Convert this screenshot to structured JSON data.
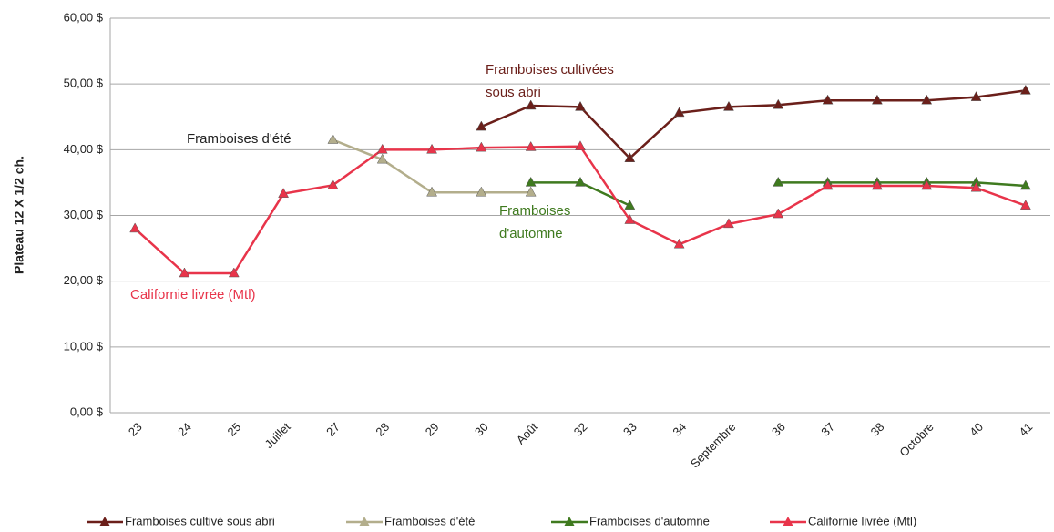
{
  "chart_data": {
    "type": "line",
    "y_label": "Plateau 12 X 1/2 ch.",
    "categories": [
      "23",
      "24",
      "25",
      "Juillet",
      "27",
      "28",
      "29",
      "30",
      "Août",
      "32",
      "33",
      "34",
      "Septembre",
      "36",
      "37",
      "38",
      "Octobre",
      "40",
      "41"
    ],
    "ylim": [
      0,
      60
    ],
    "yticks": [
      {
        "value": 0,
        "label": "0,00 $"
      },
      {
        "value": 10,
        "label": "10,00 $"
      },
      {
        "value": 20,
        "label": "20,00 $"
      },
      {
        "value": 30,
        "label": "30,00 $"
      },
      {
        "value": 40,
        "label": "40,00 $"
      },
      {
        "value": 50,
        "label": "50,00 $"
      },
      {
        "value": 60,
        "label": "60,00 $"
      }
    ],
    "grid": true,
    "legend": "bottom",
    "series": [
      {
        "name": "Framboises cultivé sous abri",
        "color": "#6b1f1a",
        "values": [
          null,
          null,
          null,
          null,
          null,
          null,
          null,
          43.5,
          46.7,
          46.5,
          38.7,
          45.6,
          46.5,
          46.8,
          47.5,
          47.5,
          47.5,
          48,
          49
        ]
      },
      {
        "name": "Framboises d'été",
        "color": "#b3ae8c",
        "values": [
          null,
          null,
          null,
          null,
          41.5,
          38.5,
          33.5,
          33.5,
          33.5,
          null,
          null,
          null,
          null,
          null,
          null,
          null,
          null,
          null,
          null
        ]
      },
      {
        "name": "Framboises d'automne",
        "color": "#3f7a1f",
        "values": [
          null,
          null,
          null,
          null,
          null,
          null,
          null,
          null,
          35,
          35,
          31.5,
          null,
          null,
          35,
          35,
          35,
          35,
          35,
          34.5
        ]
      },
      {
        "name": "Californie livrée (Mtl)",
        "color": "#e8344a",
        "values": [
          28,
          21.2,
          21.2,
          33.3,
          34.6,
          40,
          40,
          40.3,
          40.4,
          40.5,
          29.3,
          25.6,
          28.7,
          30.2,
          34.5,
          34.5,
          34.5,
          34.2,
          31.5
        ]
      }
    ],
    "annotations": [
      {
        "lines": [
          "Framboises cultivées",
          "sous abri"
        ],
        "color": "#6b1f1a"
      },
      {
        "lines": [
          "Framboises d'été"
        ],
        "color": "#222222"
      },
      {
        "lines": [
          "Framboises",
          "d'automne"
        ],
        "color": "#3f7a1f"
      },
      {
        "lines": [
          "Californie livrée (Mtl)"
        ],
        "color": "#e8344a"
      }
    ]
  }
}
